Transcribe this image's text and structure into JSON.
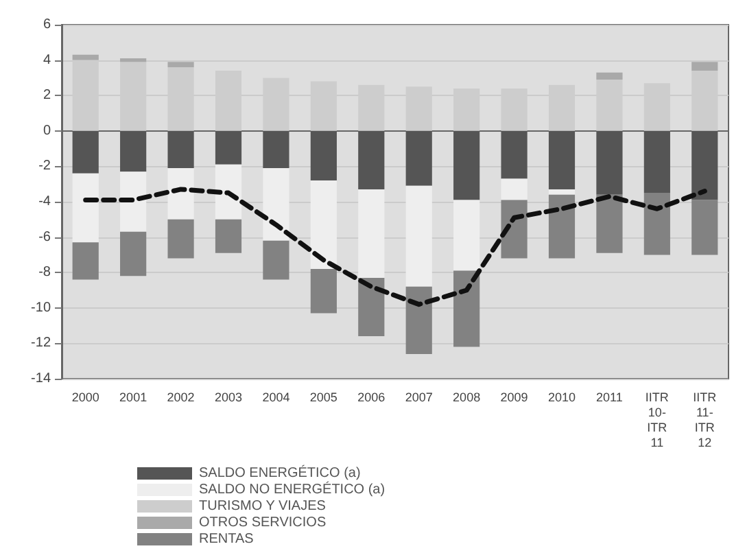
{
  "chart_data": {
    "type": "bar",
    "stacked": true,
    "categories": [
      "2000",
      "2001",
      "2002",
      "2003",
      "2004",
      "2005",
      "2006",
      "2007",
      "2008",
      "2009",
      "2010",
      "2011",
      "IITR\n10-\nITR\n11",
      "IITR\n11-\nITR\n12"
    ],
    "series": [
      {
        "name": "SALDO ENERGÉTICO (a)",
        "color": "#555555",
        "values": [
          -2.4,
          -2.3,
          -2.1,
          -1.9,
          -2.1,
          -2.8,
          -3.3,
          -3.1,
          -3.9,
          -2.7,
          -3.3,
          -3.6,
          -3.5,
          -3.9
        ]
      },
      {
        "name": "SALDO NO ENERGÉTICO (a)",
        "color": "#eeeeee",
        "values": [
          -3.9,
          -3.4,
          -2.9,
          -3.1,
          -4.1,
          -5.0,
          -5.0,
          -5.7,
          -4.0,
          -1.2,
          -0.3,
          null,
          null,
          null
        ]
      },
      {
        "name": "TURISMO Y VIAJES",
        "color": "#cdcdcd",
        "values": [
          4.0,
          3.9,
          3.6,
          3.4,
          3.0,
          2.8,
          2.6,
          2.5,
          2.4,
          2.4,
          2.6,
          2.9,
          2.7,
          3.4
        ]
      },
      {
        "name": "OTROS SERVICIOS",
        "color": "#a9a9a9",
        "values": [
          0.3,
          0.2,
          0.3,
          null,
          null,
          null,
          null,
          null,
          null,
          null,
          null,
          0.4,
          null,
          0.5
        ]
      },
      {
        "name": "RENTAS",
        "color": "#828282",
        "values": [
          -2.1,
          -2.5,
          -2.2,
          -1.9,
          -2.2,
          -2.5,
          -3.3,
          -3.8,
          -4.3,
          -3.3,
          -3.6,
          -3.3,
          -3.5,
          -3.1
        ]
      },
      {
        "type": "line",
        "color": "#111111",
        "line_style": "dashed",
        "marker": "none",
        "values": [
          -3.9,
          -3.9,
          -3.3,
          -3.5,
          -5.3,
          -7.3,
          -8.8,
          -9.8,
          -9.0,
          -4.9,
          -4.4,
          -3.7,
          -4.4,
          -3.4
        ]
      }
    ],
    "ylim": [
      -14,
      6
    ],
    "yticks": [
      -14,
      -12,
      -10,
      -8,
      -6,
      -4,
      -2,
      0,
      2,
      4,
      6
    ],
    "grid": "y",
    "legend": "bottom left"
  }
}
